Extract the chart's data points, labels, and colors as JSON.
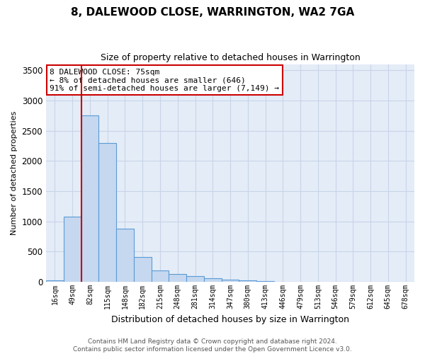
{
  "title": "8, DALEWOOD CLOSE, WARRINGTON, WA2 7GA",
  "subtitle": "Size of property relative to detached houses in Warrington",
  "xlabel": "Distribution of detached houses by size in Warrington",
  "ylabel": "Number of detached properties",
  "footer_line1": "Contains HM Land Registry data © Crown copyright and database right 2024.",
  "footer_line2": "Contains public sector information licensed under the Open Government Licence v3.0.",
  "annotation_line1": "8 DALEWOOD CLOSE: 75sqm",
  "annotation_line2": "← 8% of detached houses are smaller (646)",
  "annotation_line3": "91% of semi-detached houses are larger (7,149) →",
  "bar_categories": [
    "16sqm",
    "49sqm",
    "82sqm",
    "115sqm",
    "148sqm",
    "182sqm",
    "215sqm",
    "248sqm",
    "281sqm",
    "314sqm",
    "347sqm",
    "380sqm",
    "413sqm",
    "446sqm",
    "479sqm",
    "513sqm",
    "546sqm",
    "579sqm",
    "612sqm",
    "645sqm",
    "678sqm"
  ],
  "bar_values": [
    30,
    1080,
    2750,
    2290,
    880,
    410,
    190,
    130,
    95,
    55,
    40,
    20,
    10,
    5,
    0,
    0,
    0,
    0,
    0,
    0,
    0
  ],
  "bar_color": "#c5d8f0",
  "bar_edge_color": "#5b9bd5",
  "red_line_x": 1.5,
  "ylim": [
    0,
    3600
  ],
  "yticks": [
    0,
    500,
    1000,
    1500,
    2000,
    2500,
    3000,
    3500
  ],
  "grid_color": "#c8d4e8",
  "bg_color": "#e4ecf7",
  "red_color": "#cc0000",
  "annotation_box_color": "#ffffff",
  "annotation_box_edge": "#cc0000",
  "title_fontsize": 11,
  "subtitle_fontsize": 9,
  "ylabel_fontsize": 8,
  "xlabel_fontsize": 9
}
